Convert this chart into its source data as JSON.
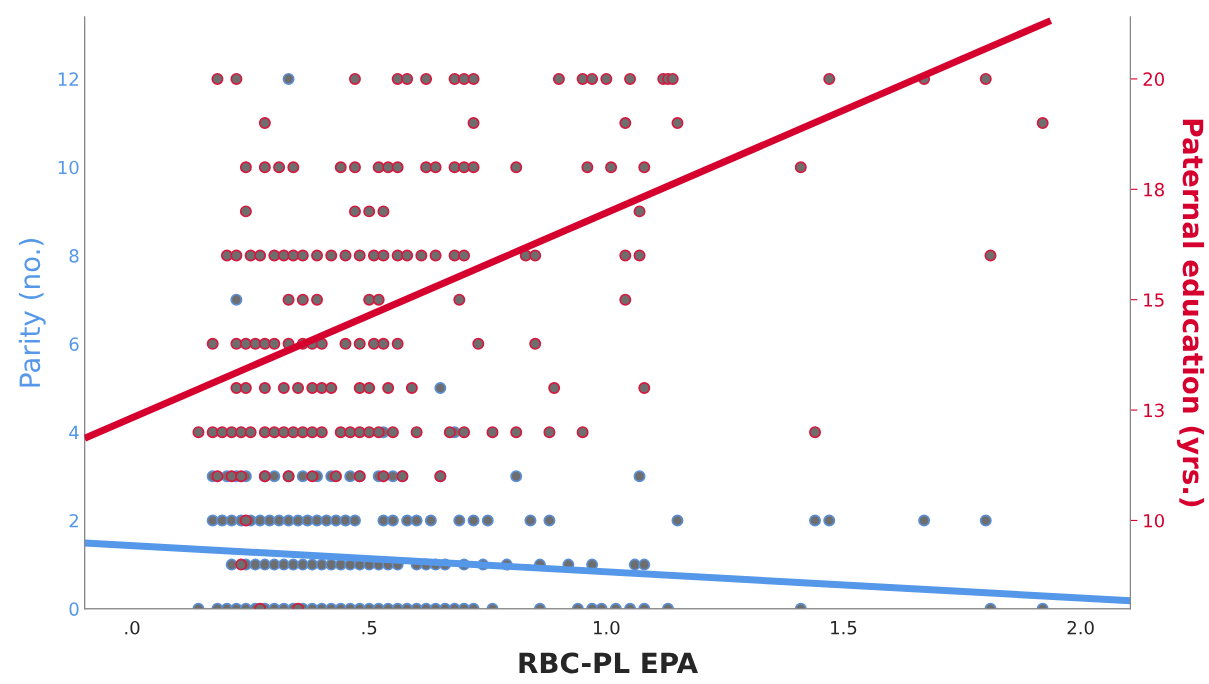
{
  "chart_data": {
    "type": "scatter",
    "xlabel": "RBC-PL EPA",
    "ylabel": "Parity (no.)",
    "y2label": "Paternal education (yrs.)",
    "xlim": [
      -0.1,
      2.105
    ],
    "xticks": [
      {
        "value": 0,
        "label": ".0"
      },
      {
        "value": 0.5,
        "label": ".5"
      },
      {
        "value": 1.0,
        "label": "1.0"
      },
      {
        "value": 1.5,
        "label": "1.5"
      },
      {
        "value": 2.0,
        "label": "2.0"
      }
    ],
    "ylim": [
      0,
      13.4
    ],
    "yticks": [
      0,
      2,
      4,
      6,
      8,
      10,
      12
    ],
    "y2lim": [
      8,
      21.4
    ],
    "y2ticks": [
      10,
      {
        "value": 12.5,
        "label": "13"
      },
      15,
      {
        "value": 17.5,
        "label": "18"
      },
      20
    ],
    "grid": false,
    "legend": false,
    "series": [
      {
        "marker": "circle",
        "color": "#5b8fd6",
        "x": [
          0.14,
          0.18,
          0.2,
          0.22,
          0.24,
          0.26,
          0.28,
          0.3,
          0.32,
          0.34,
          0.36,
          0.38,
          0.4,
          0.42,
          0.44,
          0.46,
          0.48,
          0.5,
          0.52,
          0.54,
          0.56,
          0.58,
          0.6,
          0.62,
          0.64,
          0.66,
          0.68,
          0.7,
          0.72,
          0.76,
          0.86,
          0.94,
          0.97,
          0.99,
          1.02,
          1.05,
          1.08,
          1.13,
          1.41,
          1.81,
          1.92,
          0.21,
          0.24,
          0.26,
          0.28,
          0.3,
          0.32,
          0.34,
          0.36,
          0.38,
          0.4,
          0.42,
          0.44,
          0.46,
          0.48,
          0.5,
          0.52,
          0.54,
          0.56,
          0.6,
          0.62,
          0.64,
          0.66,
          0.7,
          0.74,
          0.79,
          0.86,
          0.92,
          0.97,
          1.06,
          1.08,
          0.17,
          0.19,
          0.21,
          0.23,
          0.25,
          0.27,
          0.29,
          0.31,
          0.33,
          0.35,
          0.37,
          0.39,
          0.41,
          0.43,
          0.45,
          0.47,
          0.53,
          0.55,
          0.58,
          0.6,
          0.63,
          0.69,
          0.72,
          0.75,
          0.84,
          0.88,
          1.15,
          1.44,
          1.47,
          1.67,
          1.8,
          0.17,
          0.2,
          0.22,
          0.24,
          0.28,
          0.3,
          0.33,
          0.36,
          0.39,
          0.42,
          0.46,
          0.48,
          0.52,
          0.55,
          0.57,
          0.65,
          0.81,
          1.07,
          0.53,
          0.68,
          0.65,
          0.22,
          0.33
        ],
        "values": [
          0,
          0,
          0,
          0,
          0,
          0,
          0,
          0,
          0,
          0,
          0,
          0,
          0,
          0,
          0,
          0,
          0,
          0,
          0,
          0,
          0,
          0,
          0,
          0,
          0,
          0,
          0,
          0,
          0,
          0,
          0,
          0,
          0,
          0,
          0,
          0,
          0,
          0,
          0,
          0,
          0,
          1,
          1,
          1,
          1,
          1,
          1,
          1,
          1,
          1,
          1,
          1,
          1,
          1,
          1,
          1,
          1,
          1,
          1,
          1,
          1,
          1,
          1,
          1,
          1,
          1,
          1,
          1,
          1,
          1,
          1,
          2,
          2,
          2,
          2,
          2,
          2,
          2,
          2,
          2,
          2,
          2,
          2,
          2,
          2,
          2,
          2,
          2,
          2,
          2,
          2,
          2,
          2,
          2,
          2,
          2,
          2,
          2,
          2,
          2,
          2,
          2,
          3,
          3,
          3,
          3,
          3,
          3,
          3,
          3,
          3,
          3,
          3,
          3,
          3,
          3,
          3,
          3,
          3,
          3,
          4,
          4,
          5,
          7,
          12
        ]
      },
      {
        "marker": "circle",
        "axis": "y2",
        "color": "#d6193f",
        "x": [
          0.27,
          0.35,
          0.23,
          0.24,
          0.18,
          0.21,
          0.23,
          0.28,
          0.33,
          0.38,
          0.43,
          0.48,
          0.53,
          0.57,
          0.65,
          0.14,
          0.17,
          0.19,
          0.21,
          0.23,
          0.25,
          0.28,
          0.3,
          0.32,
          0.34,
          0.36,
          0.38,
          0.4,
          0.44,
          0.46,
          0.48,
          0.5,
          0.52,
          0.55,
          0.6,
          0.67,
          0.7,
          0.76,
          0.81,
          0.88,
          0.95,
          1.44,
          0.22,
          0.24,
          0.28,
          0.32,
          0.35,
          0.38,
          0.4,
          0.42,
          0.48,
          0.5,
          0.54,
          0.59,
          0.89,
          1.08,
          0.17,
          0.22,
          0.24,
          0.26,
          0.28,
          0.3,
          0.33,
          0.36,
          0.38,
          0.4,
          0.45,
          0.48,
          0.51,
          0.53,
          0.56,
          0.73,
          0.85,
          0.33,
          0.36,
          0.39,
          0.5,
          0.52,
          0.69,
          1.04,
          0.2,
          0.22,
          0.25,
          0.27,
          0.3,
          0.32,
          0.34,
          0.36,
          0.39,
          0.42,
          0.45,
          0.48,
          0.51,
          0.53,
          0.56,
          0.58,
          0.61,
          0.64,
          0.68,
          0.7,
          0.83,
          0.85,
          1.04,
          1.07,
          1.81,
          0.24,
          0.47,
          0.5,
          0.53,
          1.07,
          0.24,
          0.28,
          0.31,
          0.34,
          0.44,
          0.47,
          0.52,
          0.54,
          0.56,
          0.62,
          0.64,
          0.68,
          0.7,
          0.72,
          0.81,
          0.96,
          1.01,
          1.08,
          1.41,
          0.28,
          0.72,
          1.04,
          1.15,
          1.92,
          0.18,
          0.22,
          0.47,
          0.56,
          0.58,
          0.62,
          0.68,
          0.7,
          0.72,
          0.9,
          0.95,
          0.97,
          1.0,
          1.05,
          1.12,
          1.13,
          1.14,
          1.47,
          1.67,
          1.8
        ],
        "values": [
          8,
          8,
          9,
          10,
          11,
          11,
          11,
          11,
          11,
          11,
          11,
          11,
          11,
          11,
          11,
          12,
          12,
          12,
          12,
          12,
          12,
          12,
          12,
          12,
          12,
          12,
          12,
          12,
          12,
          12,
          12,
          12,
          12,
          12,
          12,
          12,
          12,
          12,
          12,
          12,
          12,
          12,
          13,
          13,
          13,
          13,
          13,
          13,
          13,
          13,
          13,
          13,
          13,
          13,
          13,
          13,
          14,
          14,
          14,
          14,
          14,
          14,
          14,
          14,
          14,
          14,
          14,
          14,
          14,
          14,
          14,
          14,
          14,
          15,
          15,
          15,
          15,
          15,
          15,
          15,
          16,
          16,
          16,
          16,
          16,
          16,
          16,
          16,
          16,
          16,
          16,
          16,
          16,
          16,
          16,
          16,
          16,
          16,
          16,
          16,
          16,
          16,
          16,
          16,
          16,
          17,
          17,
          17,
          17,
          17,
          18,
          18,
          18,
          18,
          18,
          18,
          18,
          18,
          18,
          18,
          18,
          18,
          18,
          18,
          18,
          18,
          18,
          18,
          18,
          19,
          19,
          19,
          19,
          19,
          20,
          20,
          20,
          20,
          20,
          20,
          20,
          20,
          20,
          20,
          20,
          20,
          20,
          20,
          20,
          20,
          20,
          20,
          20,
          20
        ]
      },
      {
        "type": "line",
        "color": "#5597e8",
        "x": [
          -0.1,
          2.105
        ],
        "values": [
          1.49,
          0.18
        ]
      },
      {
        "type": "line",
        "axis": "y2",
        "color": "#d6002f",
        "x": [
          -0.1,
          1.937
        ],
        "values": [
          11.86,
          21.32
        ]
      }
    ]
  }
}
